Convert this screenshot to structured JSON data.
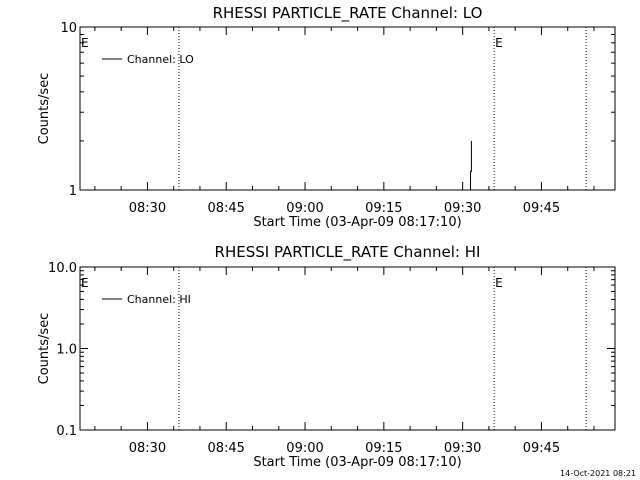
{
  "footer": {
    "timestamp": "14-Oct-2021 08:21"
  },
  "chart_data": [
    {
      "type": "line",
      "title": "RHESSI PARTICLE_RATE Channel: LO",
      "xlabel": "Start Time (03-Apr-09 08:17:10)",
      "ylabel": "Counts/sec",
      "y_scale": "log",
      "ylim": [
        1,
        10
      ],
      "y_ticks": [
        {
          "value": 1,
          "label": "1"
        },
        {
          "value": 10,
          "label": "10"
        }
      ],
      "xlim": [
        "08:17:10",
        "09:59:00"
      ],
      "x_ticks": [
        "08:30",
        "08:45",
        "09:00",
        "09:15",
        "09:30",
        "09:45"
      ],
      "vlines": [
        "08:36:00",
        "09:36:00",
        "09:53:30"
      ],
      "vline_markers": [
        {
          "time": "08:17:10",
          "label": "E"
        },
        {
          "time": "09:36:00",
          "label": "E"
        }
      ],
      "legend": {
        "position": "top-left",
        "label": "Channel: LO"
      },
      "series": [
        {
          "name": "Channel: LO",
          "x": [
            "09:31:30",
            "09:31:30",
            "09:31:40",
            "09:31:40"
          ],
          "values": [
            1,
            1.3,
            1.3,
            2.0
          ]
        }
      ]
    },
    {
      "type": "line",
      "title": "RHESSI PARTICLE_RATE Channel: HI",
      "xlabel": "Start Time (03-Apr-09 08:17:10)",
      "ylabel": "Counts/sec",
      "y_scale": "log",
      "ylim": [
        0.1,
        10
      ],
      "y_ticks": [
        {
          "value": 0.1,
          "label": "0.1"
        },
        {
          "value": 1,
          "label": "1.0"
        },
        {
          "value": 10,
          "label": "10.0"
        }
      ],
      "xlim": [
        "08:17:10",
        "09:59:00"
      ],
      "x_ticks": [
        "08:30",
        "08:45",
        "09:00",
        "09:15",
        "09:30",
        "09:45"
      ],
      "vlines": [
        "08:36:00",
        "09:36:00",
        "09:53:30"
      ],
      "vline_markers": [
        {
          "time": "08:17:10",
          "label": "E"
        },
        {
          "time": "09:36:00",
          "label": "E"
        }
      ],
      "legend": {
        "position": "top-left",
        "label": "Channel: HI"
      },
      "series": [
        {
          "name": "Channel: HI",
          "x": [],
          "values": []
        }
      ]
    }
  ]
}
